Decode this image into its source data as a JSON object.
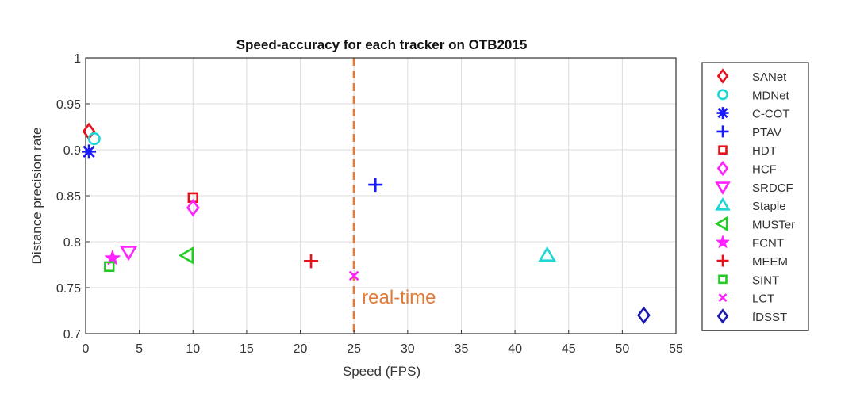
{
  "chart_data": {
    "type": "scatter",
    "title": "Speed-accuracy for each tracker on OTB2015",
    "xlabel": "Speed (FPS)",
    "ylabel": "Distance precision rate",
    "xlim": [
      0,
      55
    ],
    "ylim": [
      0.7,
      1
    ],
    "xticks": [
      "0",
      "5",
      "10",
      "15",
      "20",
      "25",
      "30",
      "35",
      "40",
      "45",
      "50",
      "55"
    ],
    "yticks": [
      "0.7",
      "0.75",
      "0.8",
      "0.85",
      "0.9",
      "0.95",
      "1"
    ],
    "grid": true,
    "legend_position": "right",
    "reference_line": {
      "x": 25,
      "label": "real-time",
      "color": "#e07b39",
      "style": "dashed"
    },
    "series": [
      {
        "name": "SANet",
        "x": 0.3,
        "y": 0.92,
        "marker": "diamond",
        "color": "#e8111b"
      },
      {
        "name": "MDNet",
        "x": 0.8,
        "y": 0.912,
        "marker": "circle",
        "color": "#1ed6d6"
      },
      {
        "name": "C-COT",
        "x": 0.3,
        "y": 0.898,
        "marker": "asterisk",
        "color": "#1a1aff"
      },
      {
        "name": "PTAV",
        "x": 27,
        "y": 0.862,
        "marker": "plus",
        "color": "#1a1aff"
      },
      {
        "name": "HDT",
        "x": 10,
        "y": 0.848,
        "marker": "square",
        "color": "#e8111b"
      },
      {
        "name": "HCF",
        "x": 10,
        "y": 0.837,
        "marker": "diamond",
        "color": "#ff22ff"
      },
      {
        "name": "SRDCF",
        "x": 4,
        "y": 0.789,
        "marker": "triangle-down",
        "color": "#ff22ff"
      },
      {
        "name": "Staple",
        "x": 43,
        "y": 0.785,
        "marker": "triangle-up",
        "color": "#1ed6d6"
      },
      {
        "name": "MUSTer",
        "x": 9.5,
        "y": 0.785,
        "marker": "triangle-left",
        "color": "#22cc22"
      },
      {
        "name": "FCNT",
        "x": 2.5,
        "y": 0.782,
        "marker": "pentagram",
        "color": "#ff22ff"
      },
      {
        "name": "MEEM",
        "x": 21,
        "y": 0.779,
        "marker": "plus",
        "color": "#e8111b"
      },
      {
        "name": "SINT",
        "x": 2.2,
        "y": 0.773,
        "marker": "square",
        "color": "#22cc22"
      },
      {
        "name": "LCT",
        "x": 25,
        "y": 0.763,
        "marker": "x",
        "color": "#ff22ff"
      },
      {
        "name": "fDSST",
        "x": 52,
        "y": 0.72,
        "marker": "diamond",
        "color": "#1a1ab0"
      }
    ]
  }
}
